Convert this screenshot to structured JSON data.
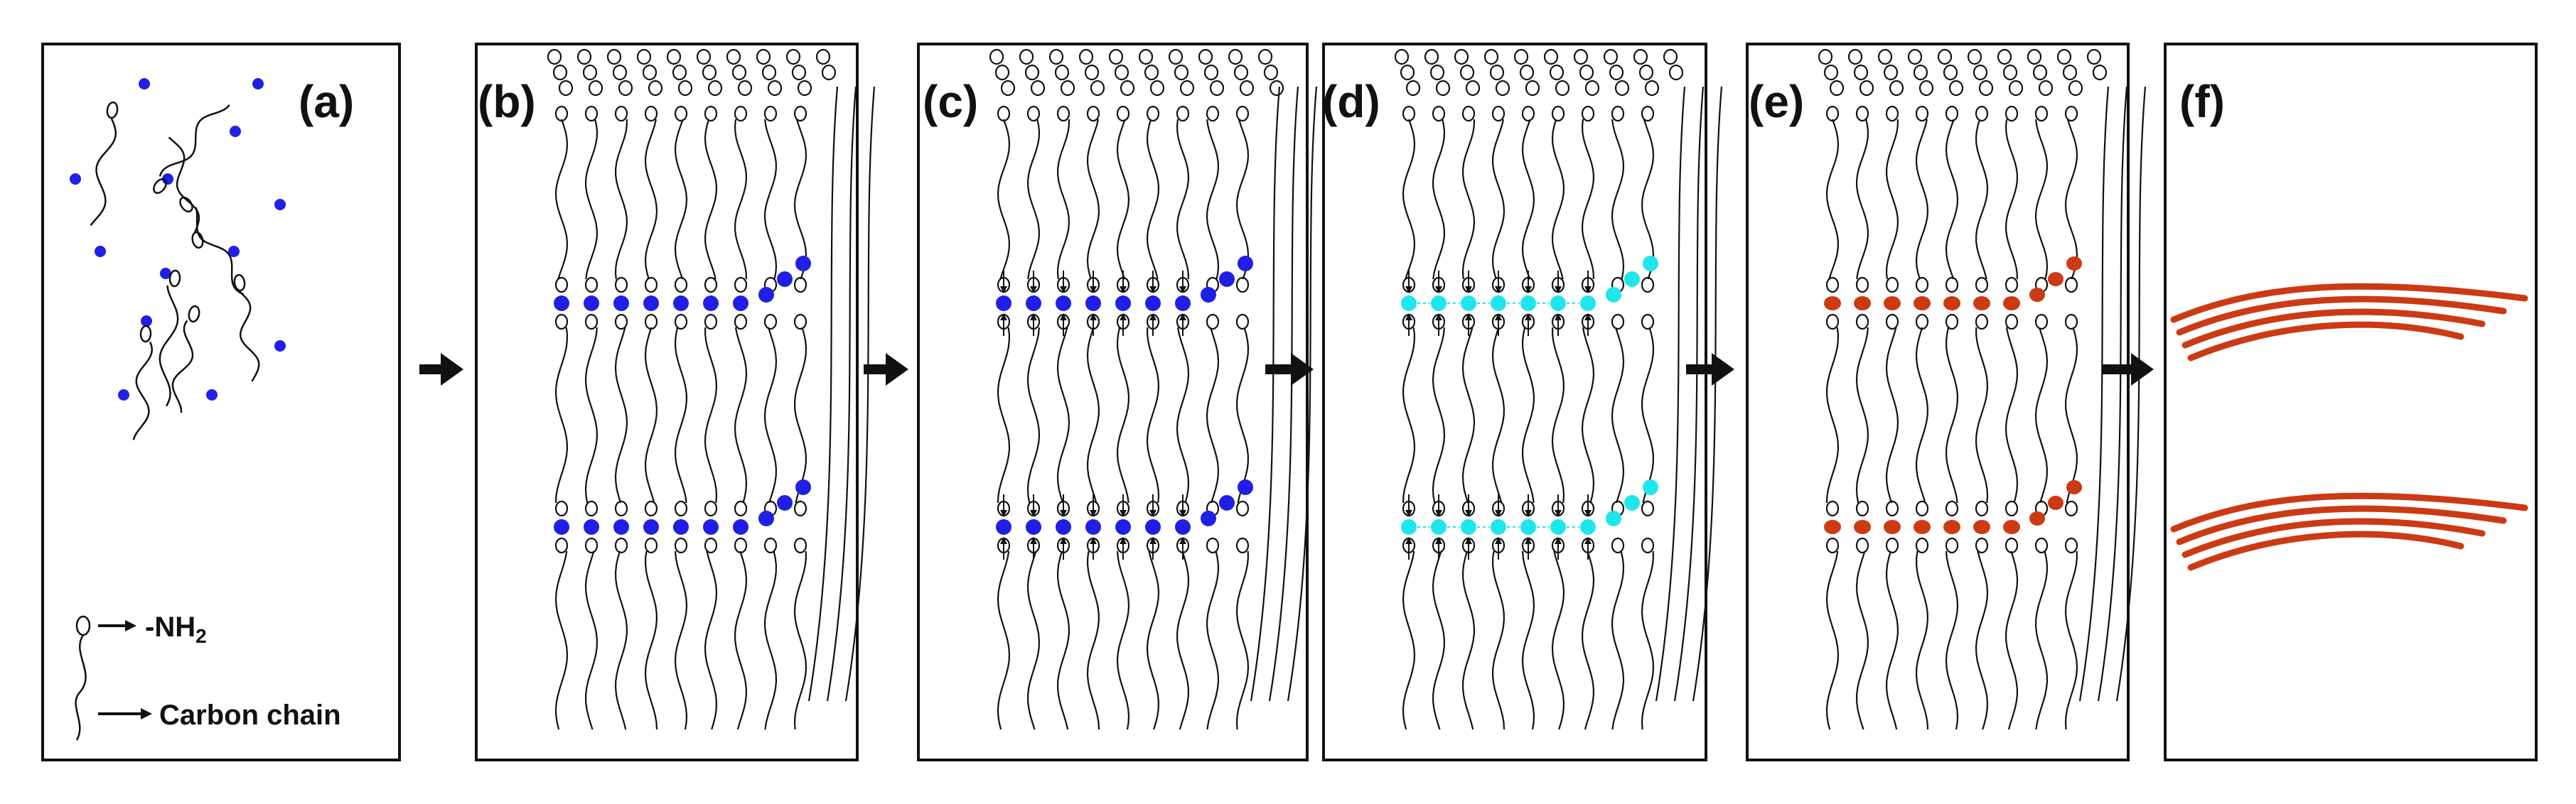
{
  "panels": [
    {
      "id": "a",
      "label": "(a)",
      "stage": "dispersed amine molecules and metal ions"
    },
    {
      "id": "b",
      "label": "(b)",
      "stage": "ions arranged between amine layers"
    },
    {
      "id": "c",
      "label": "(c)",
      "stage": "amine coordination to ions"
    },
    {
      "id": "d",
      "label": "(d)",
      "stage": "reduced / activated ions"
    },
    {
      "id": "e",
      "label": "(e)",
      "stage": "nanoparticle chains between layers"
    },
    {
      "id": "f",
      "label": "(f)",
      "stage": "released nanowires"
    }
  ],
  "legend": {
    "head_text": "-NH",
    "head_subscript": "2",
    "chain_text": "Carbon chain"
  },
  "colors": {
    "ion_blue": "#1f1fe6",
    "ion_cyan": "#1fe6ec",
    "particle_red": "#cc3a14",
    "ink": "#111111"
  }
}
